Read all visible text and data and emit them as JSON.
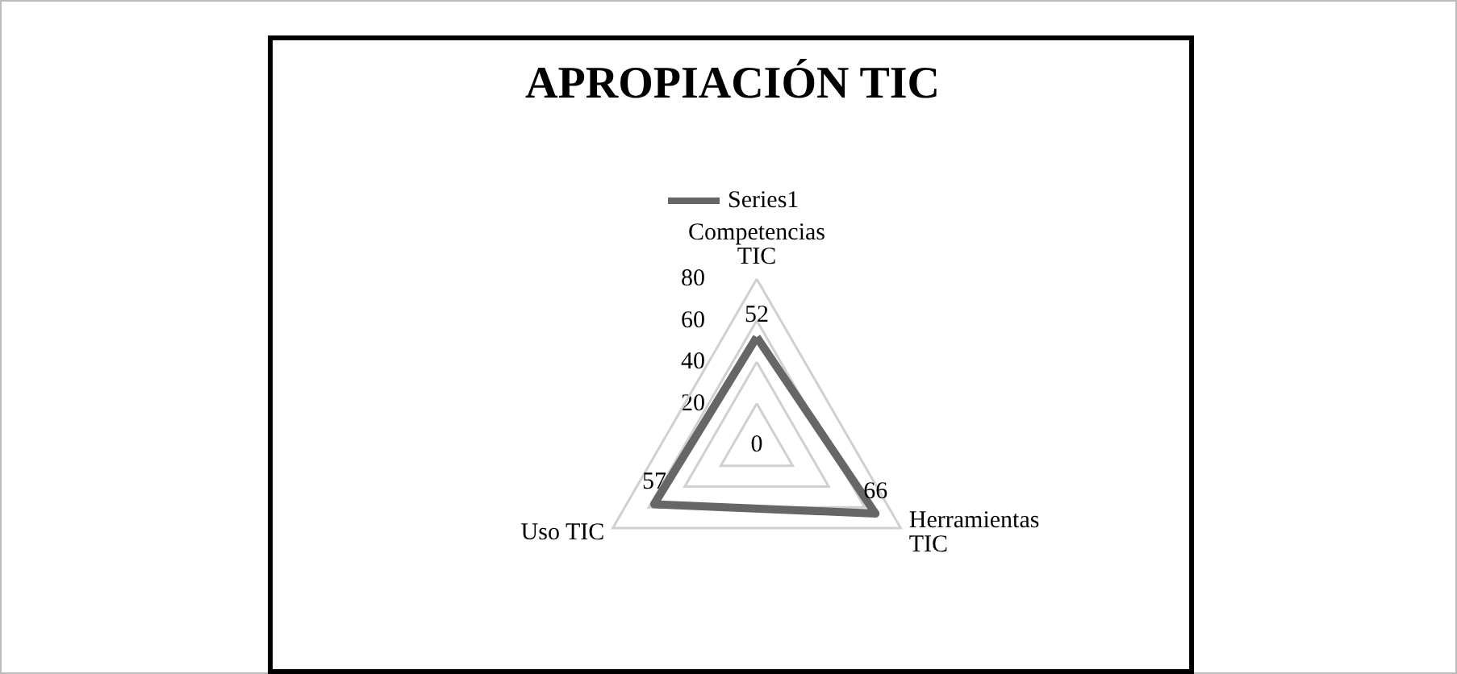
{
  "chart_data": {
    "type": "radar",
    "title": "APROPIACIÓN TIC",
    "categories": [
      "Competencias TIC",
      "Herramientas TIC",
      "Uso TIC"
    ],
    "series": [
      {
        "name": "Series1",
        "color": "#666666",
        "values": [
          52,
          66,
          57
        ]
      }
    ],
    "ylim": [
      0,
      80
    ],
    "yticks": [
      0,
      20,
      40,
      60,
      80
    ],
    "data_labels": true,
    "legend": "top",
    "marker": "none",
    "grid": true
  }
}
